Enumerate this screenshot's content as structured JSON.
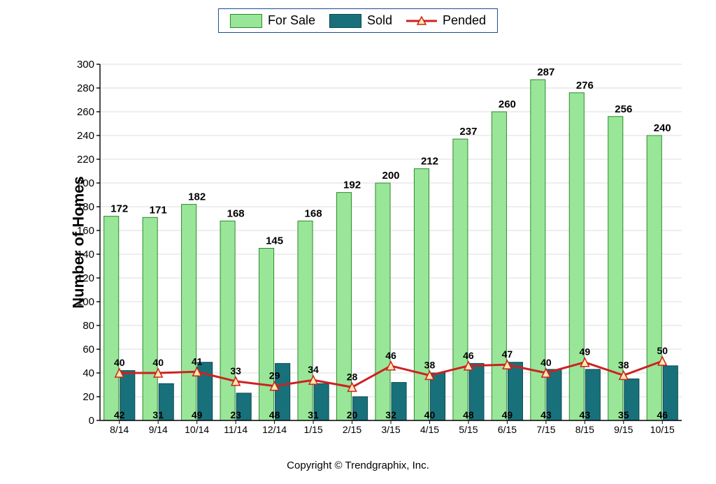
{
  "chart": {
    "type": "bar_with_line",
    "ylabel": "Number of Homes",
    "ylim": [
      0,
      300
    ],
    "ytick_step": 20,
    "categories": [
      "8/14",
      "9/14",
      "10/14",
      "11/14",
      "12/14",
      "1/15",
      "2/15",
      "3/15",
      "4/15",
      "5/15",
      "6/15",
      "7/15",
      "8/15",
      "9/15",
      "10/15"
    ],
    "series": {
      "for_sale": {
        "label": "For Sale",
        "color": "#99e699",
        "border": "#2c8a2c",
        "values": [
          172,
          171,
          182,
          168,
          145,
          168,
          192,
          200,
          212,
          237,
          260,
          287,
          276,
          256,
          240
        ]
      },
      "sold": {
        "label": "Sold",
        "color": "#18717a",
        "border": "#0d4a50",
        "values": [
          42,
          31,
          49,
          23,
          48,
          31,
          20,
          32,
          40,
          48,
          49,
          43,
          43,
          35,
          46
        ]
      },
      "pended": {
        "label": "Pended",
        "line_color": "#cc2222",
        "marker_fill": "#ffe9a8",
        "marker_stroke": "#cc2222",
        "values": [
          40,
          40,
          41,
          33,
          29,
          34,
          28,
          46,
          38,
          46,
          47,
          40,
          49,
          38,
          50
        ]
      }
    },
    "background_color": "#ffffff",
    "grid_color": "#dddddd",
    "legend_border": "#1a4b8c",
    "bar_width": 0.38,
    "title_fontsize": 18,
    "copyright": "Copyright © Trendgraphix, Inc."
  }
}
